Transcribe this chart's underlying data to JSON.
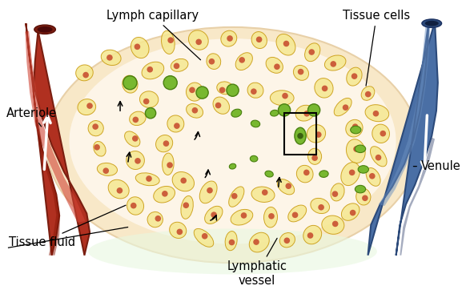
{
  "background_color": "#ffffff",
  "labels": {
    "lymph_capillary": "Lymph capillary",
    "tissue_cells": "Tissue cells",
    "arteriole": "Arteriole",
    "venule": "Venule",
    "tissue_fluid": "Tissue fluid",
    "lymphatic_vessel": "Lymphatic\nvessel"
  },
  "colors": {
    "arteriole_fill": "#b03020",
    "arteriole_dark": "#7a1e10",
    "arteriole_light": "#d04535",
    "venule_fill": "#4a6fa5",
    "venule_dark": "#2c4a7a",
    "venule_light": "#6a8fc0",
    "blood_cap_fill": "#b07080",
    "blood_cap_dark": "#8a4a58",
    "lymph_cap_fill": "#8878b8",
    "lymph_cap_dark": "#5a4a8a",
    "green_fill": "#78b830",
    "green_dark": "#4a8010",
    "green_light": "#a0d050",
    "tissue_bg_outer": "#f8e8c8",
    "tissue_bg_inner": "#fdf5e8",
    "tissue_glow": "#fffff0",
    "cell_fill": "#f5e890",
    "cell_edge": "#d4a820",
    "nucleus_fill": "#d06040",
    "text_color": "#000000"
  },
  "figsize": [
    5.87,
    3.62
  ],
  "dpi": 100
}
